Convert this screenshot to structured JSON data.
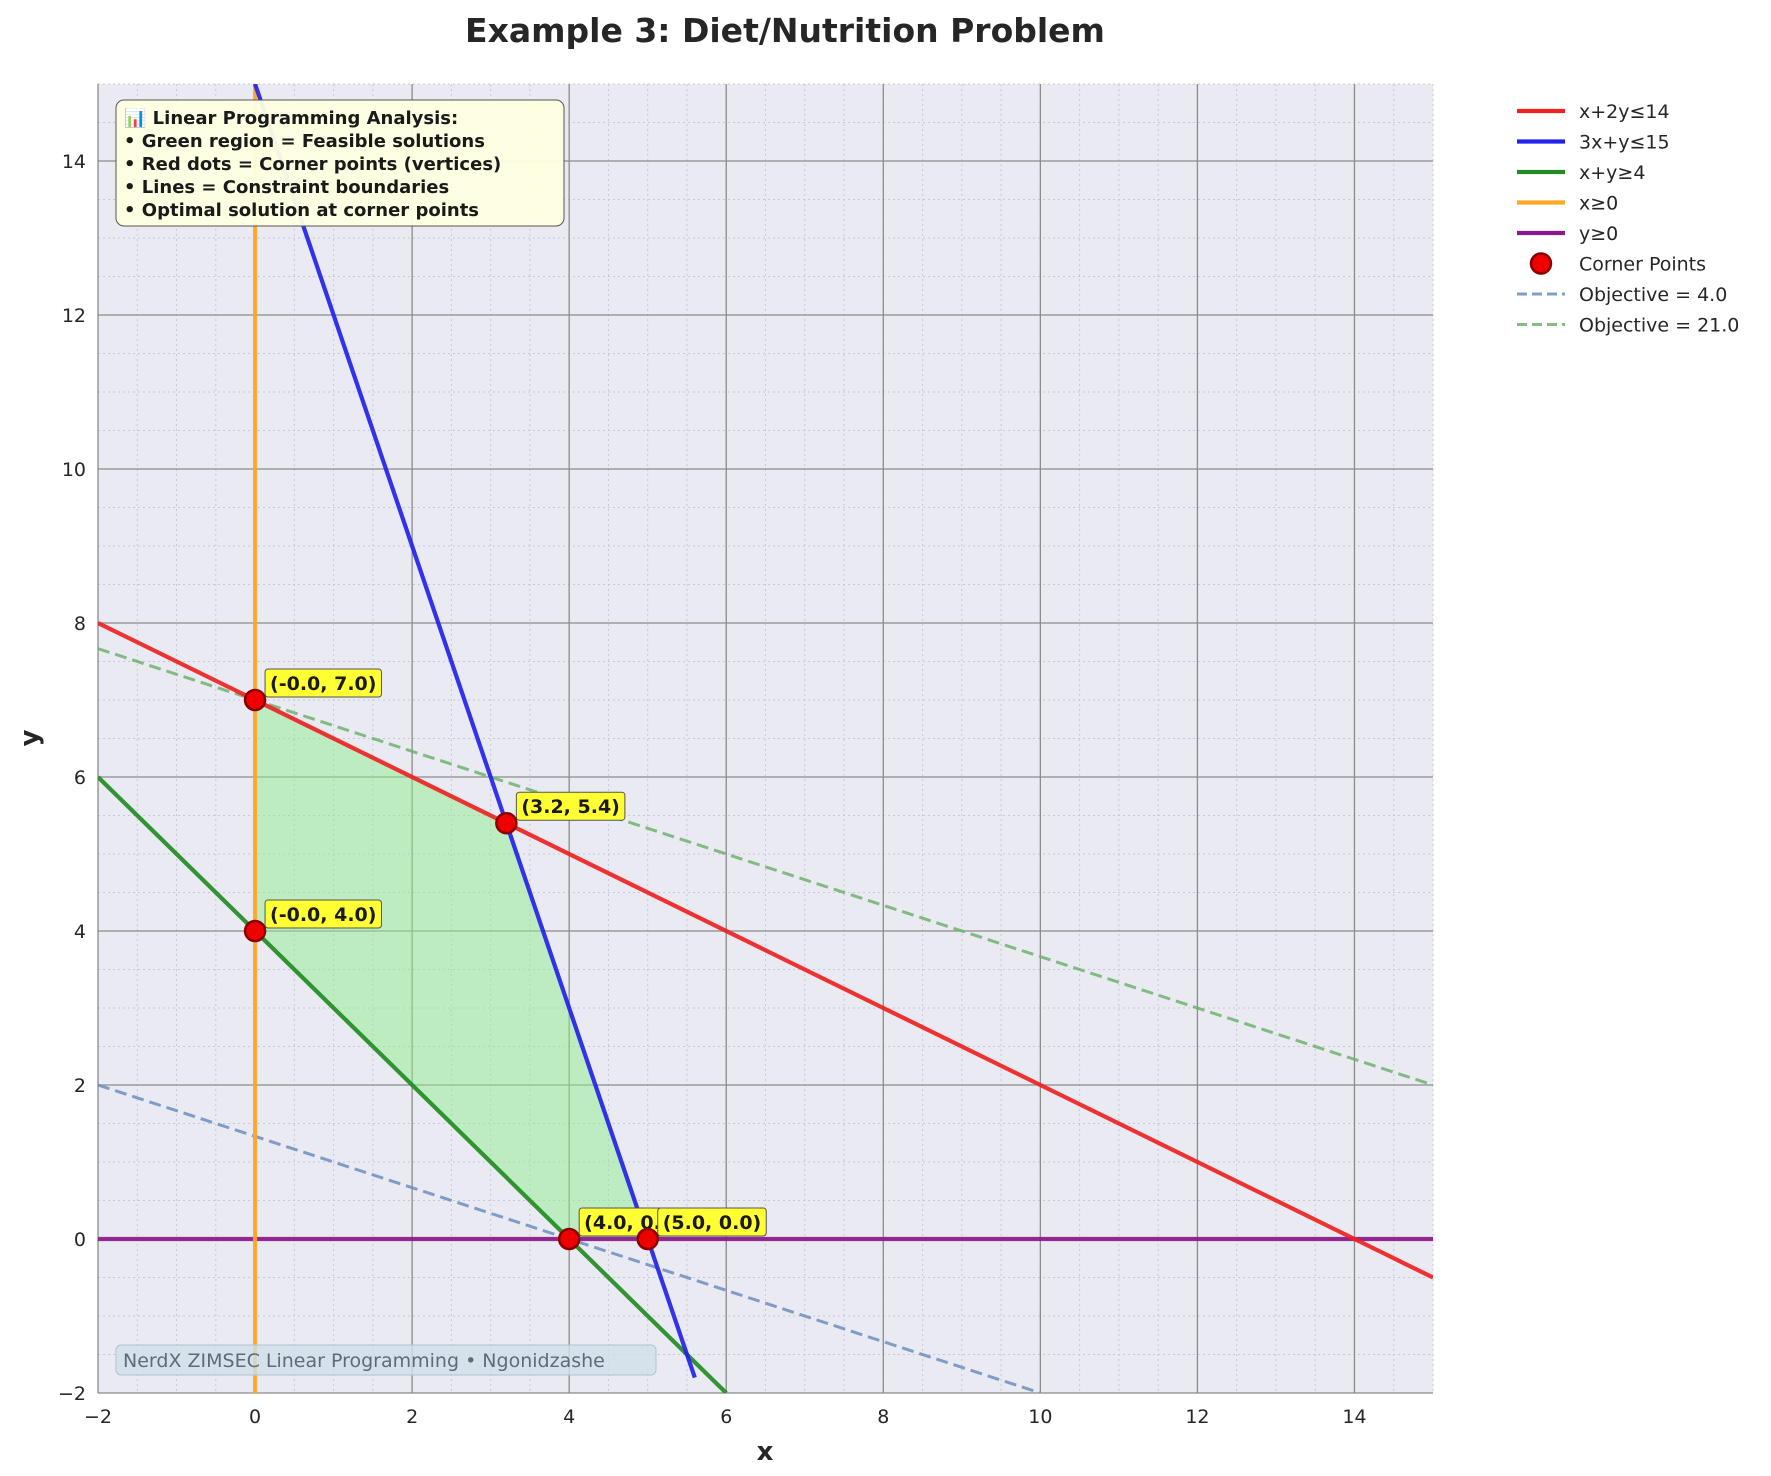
{
  "chart_data": {
    "type": "line",
    "title": "Example 3: Diet/Nutrition Problem",
    "xlabel": "x",
    "ylabel": "y",
    "xlim": [
      -2,
      15
    ],
    "ylim": [
      -2,
      15
    ],
    "xticks": [
      -2,
      0,
      2,
      4,
      6,
      8,
      10,
      12,
      14
    ],
    "yticks": [
      -2,
      0,
      2,
      4,
      6,
      8,
      10,
      12,
      14
    ],
    "grid": true,
    "legend_position": "outside-right-top",
    "series": [
      {
        "name": "x+2y≤14",
        "color": "#ee2222",
        "style": "solid",
        "points": [
          [
            -2,
            8
          ],
          [
            15,
            -0.5
          ]
        ]
      },
      {
        "name": "3x+y≤15",
        "color": "#2222ee",
        "style": "solid",
        "points": [
          [
            0,
            15
          ],
          [
            5.6,
            -1.8
          ]
        ]
      },
      {
        "name": "x+y≥4",
        "color": "#228b22",
        "style": "solid",
        "points": [
          [
            -2,
            6
          ],
          [
            6,
            -2
          ]
        ]
      },
      {
        "name": "x≥0",
        "color": "#ffa726",
        "style": "solid",
        "points": [
          [
            0,
            -2
          ],
          [
            0,
            15
          ]
        ]
      },
      {
        "name": "y≥0",
        "color": "#8b1a8b",
        "style": "solid",
        "points": [
          [
            -2,
            0
          ],
          [
            15,
            0
          ]
        ]
      },
      {
        "name": "Objective = 4.0",
        "color": "#6c8ebf",
        "style": "dashed",
        "points": [
          [
            -2,
            2
          ],
          [
            10,
            -2
          ]
        ]
      },
      {
        "name": "Objective = 21.0",
        "color": "#6db36d",
        "style": "dashed",
        "points": [
          [
            -2,
            7.667
          ],
          [
            15,
            2
          ]
        ]
      }
    ],
    "feasible_region": {
      "color": "#90ee90",
      "vertices": [
        [
          0,
          7
        ],
        [
          3.2,
          5.4
        ],
        [
          5,
          0
        ],
        [
          4,
          0
        ],
        [
          0,
          4
        ]
      ]
    },
    "corner_points": {
      "name": "Corner Points",
      "color": "#ee0000",
      "points": [
        {
          "x": 0,
          "y": 7,
          "label": "(-0.0, 7.0)"
        },
        {
          "x": 3.2,
          "y": 5.4,
          "label": "(3.2, 5.4)"
        },
        {
          "x": 0,
          "y": 4,
          "label": "(-0.0, 4.0)"
        },
        {
          "x": 4,
          "y": 0,
          "label": "(4.0, 0.0)"
        },
        {
          "x": 5,
          "y": 0,
          "label": "(5.0, 0.0)"
        }
      ]
    },
    "info_box": {
      "lines": [
        "📊 Linear Programming Analysis:",
        "• Green region = Feasible solutions",
        "• Red dots = Corner points (vertices)",
        "• Lines = Constraint boundaries",
        "• Optimal solution at corner points"
      ]
    },
    "watermark": "NerdX ZIMSEC Linear Programming • Ngonidzashe"
  }
}
